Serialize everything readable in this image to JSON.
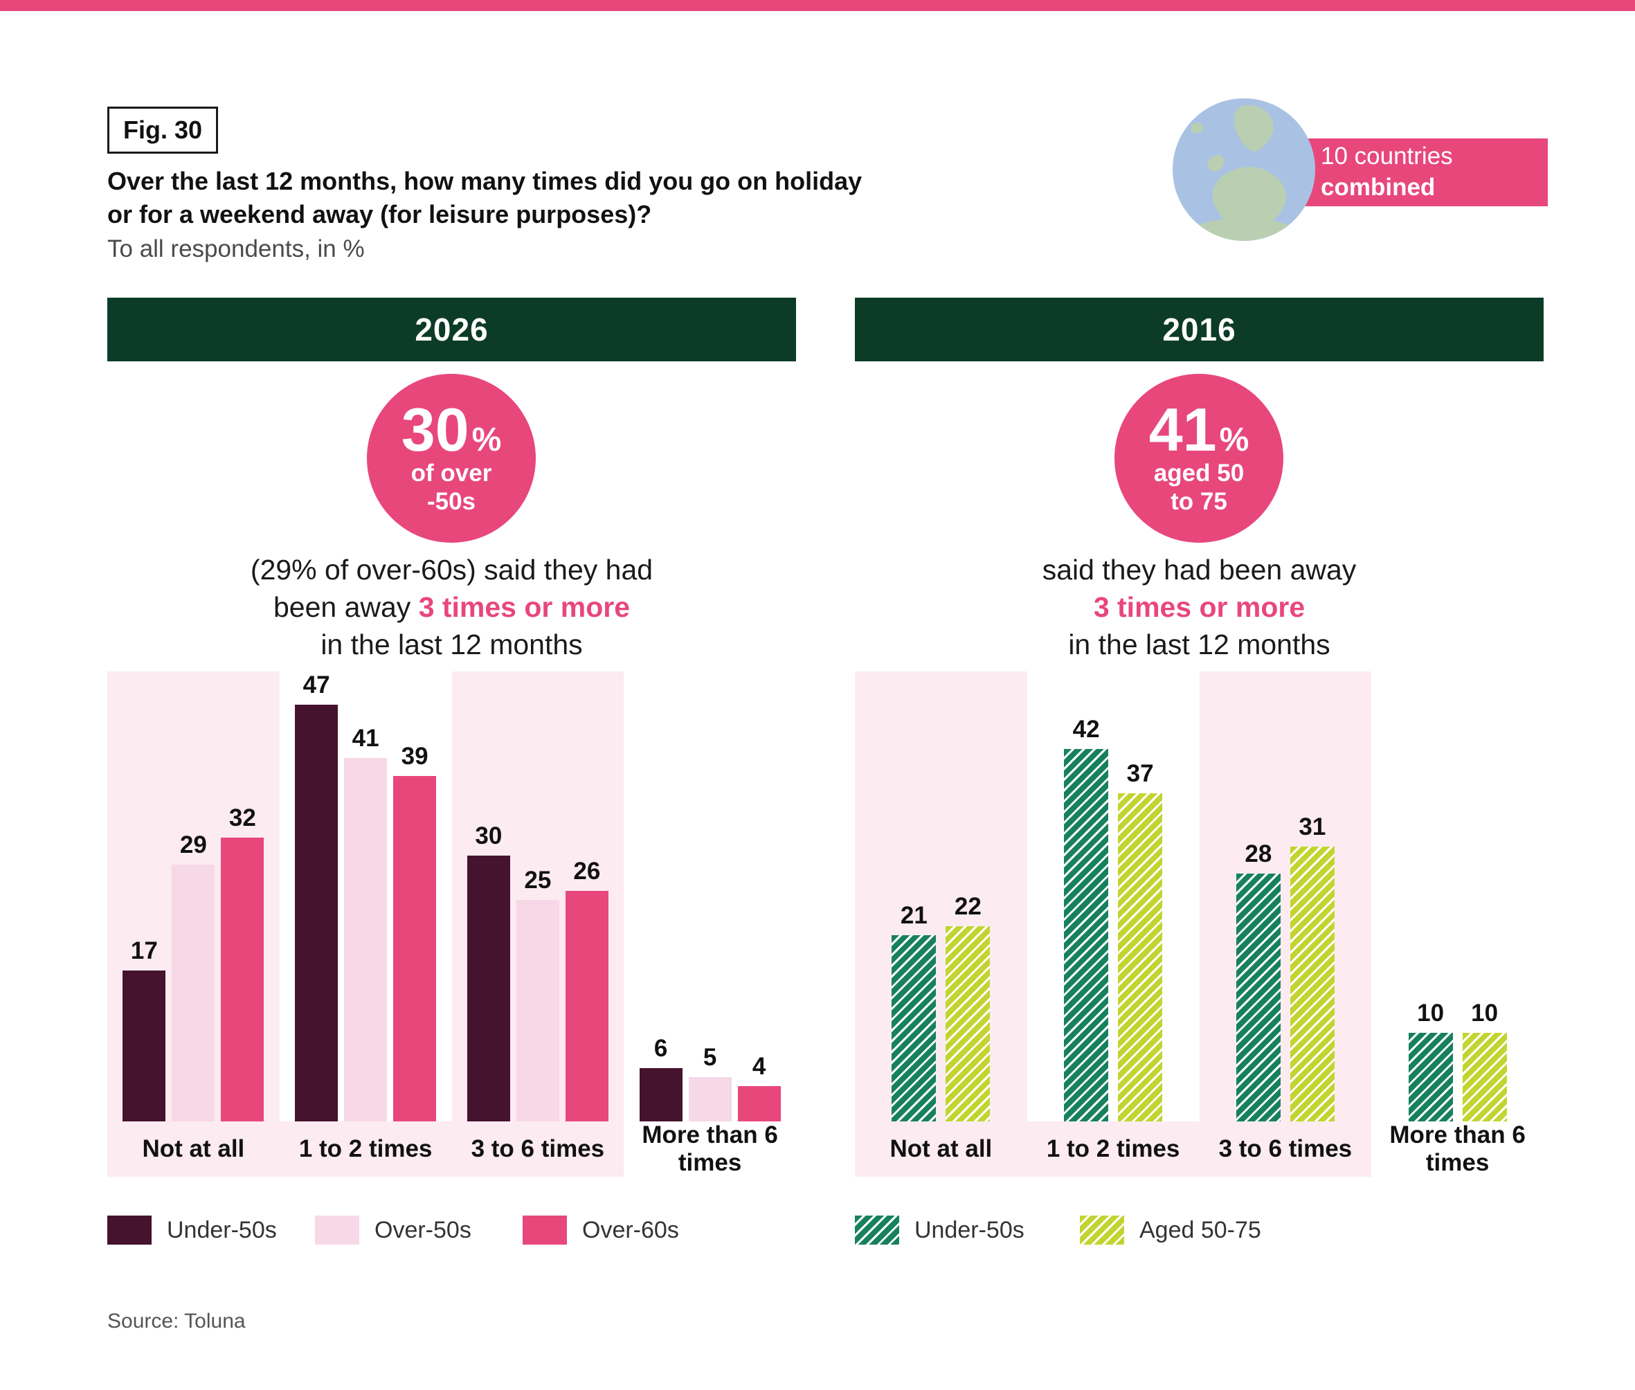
{
  "colors": {
    "accent_pink": "#e8477c",
    "dark_green": "#0c3b28",
    "maroon": "#46132e",
    "light_pink_bar": "#f7d8e7",
    "band_pink": "#fcebf1",
    "stripe_green": "#17815f",
    "lime": "#c3d431",
    "globe_sea": "#a9c2e3",
    "globe_land": "#bacfb2"
  },
  "header": {
    "fig_label": "Fig. 30",
    "title_line1": "Over the last 12 months, how many times did you go on holiday",
    "title_line2": "or for a weekend away (for leisure purposes)?",
    "subtitle": "To all respondents, in %",
    "banner_line1": "10 countries",
    "banner_line2": "combined"
  },
  "panels": [
    {
      "year": "2026",
      "highlight_value": "30",
      "highlight_pct": "%",
      "highlight_sub1": "of over",
      "highlight_sub2": "-50s",
      "caption_line1": "(29% of over-60s) said they had",
      "caption_line2_pre": "been away ",
      "caption_line2_em": "3 times or more",
      "caption_line3": "in the last 12 months"
    },
    {
      "year": "2016",
      "highlight_value": "41",
      "highlight_pct": "%",
      "highlight_sub1": "aged 50",
      "highlight_sub2": "to 75",
      "caption_line1": "said they had been away",
      "caption_line2_pre": "",
      "caption_line2_em": "3 times or more",
      "caption_line3": "in the last 12 months"
    }
  ],
  "chart_data": [
    {
      "type": "bar",
      "title": "2026",
      "categories": [
        "Not at all",
        "1 to 2 times",
        "3 to 6 times",
        "More than 6 times"
      ],
      "series": [
        {
          "name": "Under-50s",
          "color": "#46132e",
          "pattern": "solid",
          "values": [
            17,
            47,
            30,
            6
          ]
        },
        {
          "name": "Over-50s",
          "color": "#f7d8e7",
          "pattern": "solid",
          "values": [
            29,
            41,
            25,
            5
          ]
        },
        {
          "name": "Over-60s",
          "color": "#e8477c",
          "pattern": "solid",
          "values": [
            32,
            39,
            26,
            4
          ]
        }
      ],
      "xlabel": "",
      "ylabel": "",
      "ylim": [
        0,
        50
      ],
      "grid": false,
      "value_labels": true,
      "highlight_bands": [
        0,
        2
      ],
      "legend_position": "bottom"
    },
    {
      "type": "bar",
      "title": "2016",
      "categories": [
        "Not at all",
        "1 to 2 times",
        "3 to 6 times",
        "More than 6 times"
      ],
      "series": [
        {
          "name": "Under-50s",
          "color": "#17815f",
          "pattern": "diagonal-stripes",
          "values": [
            21,
            42,
            28,
            10
          ]
        },
        {
          "name": "Aged 50-75",
          "color": "#c3d431",
          "pattern": "diagonal-stripes",
          "values": [
            22,
            37,
            31,
            10
          ]
        }
      ],
      "xlabel": "",
      "ylabel": "",
      "ylim": [
        0,
        50
      ],
      "grid": false,
      "value_labels": true,
      "highlight_bands": [
        0,
        2
      ],
      "legend_position": "bottom"
    }
  ],
  "footer": {
    "source": "Source: Toluna"
  }
}
